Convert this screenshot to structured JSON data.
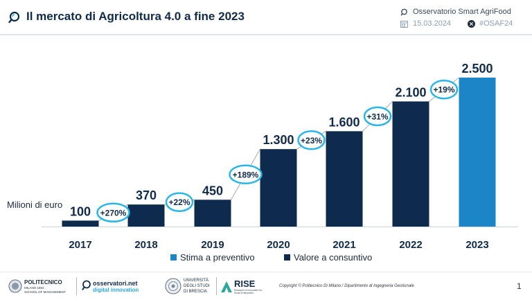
{
  "header": {
    "title": "Il mercato di Agricoltura 4.0 a fine 2023",
    "observatory": "Osservatorio Smart AgriFood",
    "date": "15.03.2024",
    "hashtag": "#OSAF24"
  },
  "chart_data": {
    "type": "bar",
    "title": "Il mercato di Agricoltura 4.0 a fine 2023",
    "ylabel": "Milioni di euro",
    "categories": [
      "2017",
      "2018",
      "2019",
      "2020",
      "2021",
      "2022",
      "2023"
    ],
    "values": [
      100,
      370,
      450,
      1300,
      1600,
      2100,
      2500
    ],
    "value_labels": [
      "100",
      "370",
      "450",
      "1.300",
      "1.600",
      "2.100",
      "2.500"
    ],
    "bar_types": [
      "consuntivo",
      "consuntivo",
      "consuntivo",
      "consuntivo",
      "consuntivo",
      "consuntivo",
      "preventivo"
    ],
    "growth_labels": [
      "+270%",
      "+22%",
      "+189%",
      "+23%",
      "+31%",
      "+19%"
    ],
    "ylim": [
      0,
      2500
    ],
    "grid": false,
    "legend_position": "bottom",
    "legend": [
      {
        "key": "preventivo",
        "label": "Stima a preventivo",
        "color": "#1a86c8"
      },
      {
        "key": "consuntivo",
        "label": "Valore a consuntivo",
        "color": "#0e2a4d"
      }
    ],
    "colors": {
      "consuntivo": "#0e2a4d",
      "preventivo": "#1a86c8",
      "bubble_border": "#29b5e8"
    }
  },
  "footer": {
    "polimi_name": "POLITECNICO",
    "polimi_sub1": "MILANO 1863",
    "polimi_sub2": "SCHOOL OF MANAGEMENT",
    "osservatori_name": "osservatori.net",
    "osservatori_sub": "digital innovation",
    "unibs_line1": "UNIVERSITÀ",
    "unibs_line2": "DEGLI STUDI",
    "unibs_line3": "DI BRESCIA",
    "rise_name": "RISE",
    "rise_sub": "Research & Innovation for Smart Enterprises",
    "copyright": "Copyright © Politecnico Di Milano / Dipartimento di Ingegneria Gestionale",
    "page_number": "1"
  }
}
